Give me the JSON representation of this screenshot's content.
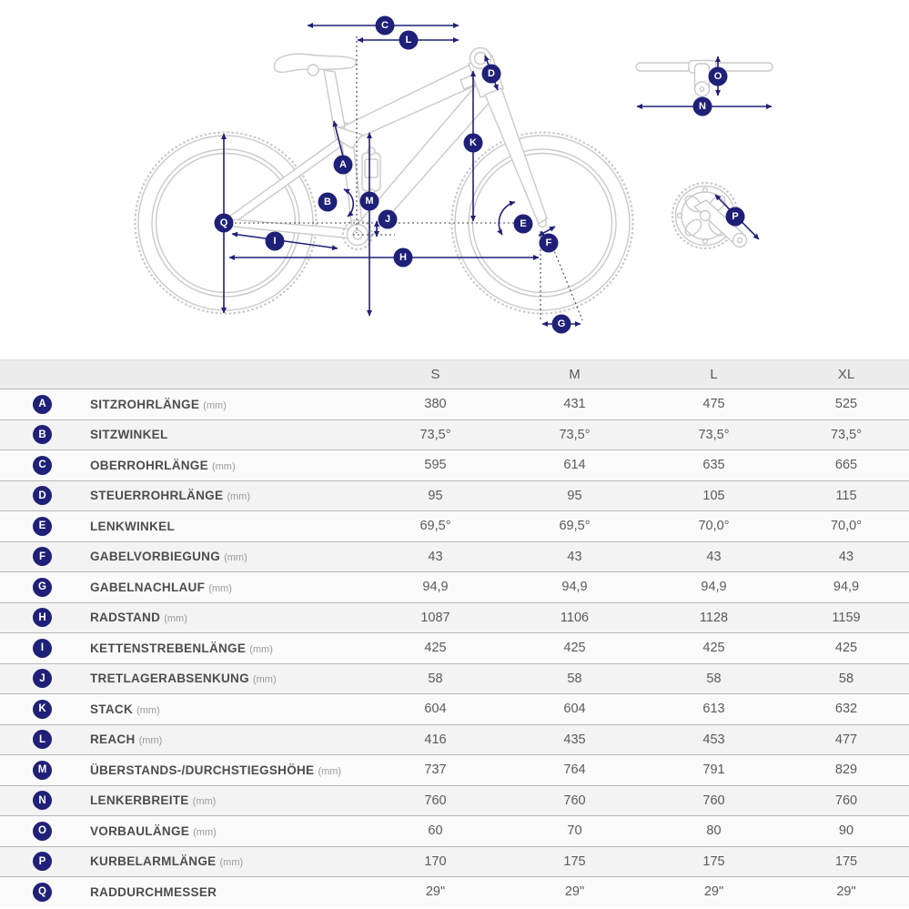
{
  "colors": {
    "accent_navy": "#1f2077",
    "line_gray": "#c9c9c9",
    "dash_gray": "#3f3f55",
    "header_bg": "#ececec",
    "row_light": "#fafafa",
    "row_dark": "#f3f3f3",
    "row_border": "#b8b8b8"
  },
  "diagram": {
    "description": "bike-geometry-line-drawing-with-dimension-arrows"
  },
  "table": {
    "size_headers": [
      "S",
      "M",
      "L",
      "XL"
    ],
    "rows": [
      {
        "letter": "A",
        "label": "SITZROHRLÄNGE",
        "unit": "(mm)",
        "values": [
          "380",
          "431",
          "475",
          "525"
        ]
      },
      {
        "letter": "B",
        "label": "SITZWINKEL",
        "unit": "",
        "values": [
          "73,5°",
          "73,5°",
          "73,5°",
          "73,5°"
        ]
      },
      {
        "letter": "C",
        "label": "OBERROHRLÄNGE",
        "unit": "(mm)",
        "values": [
          "595",
          "614",
          "635",
          "665"
        ]
      },
      {
        "letter": "D",
        "label": "STEUERROHRLÄNGE",
        "unit": "(mm)",
        "values": [
          "95",
          "95",
          "105",
          "115"
        ]
      },
      {
        "letter": "E",
        "label": "LENKWINKEL",
        "unit": "",
        "values": [
          "69,5°",
          "69,5°",
          "70,0°",
          "70,0°"
        ]
      },
      {
        "letter": "F",
        "label": "GABELVORBIEGUNG",
        "unit": "(mm)",
        "values": [
          "43",
          "43",
          "43",
          "43"
        ]
      },
      {
        "letter": "G",
        "label": "GABELNACHLAUF",
        "unit": "(mm)",
        "values": [
          "94,9",
          "94,9",
          "94,9",
          "94,9"
        ]
      },
      {
        "letter": "H",
        "label": "RADSTAND",
        "unit": "(mm)",
        "values": [
          "1087",
          "1106",
          "1128",
          "1159"
        ]
      },
      {
        "letter": "I",
        "label": "KETTENSTREBENLÄNGE",
        "unit": "(mm)",
        "values": [
          "425",
          "425",
          "425",
          "425"
        ]
      },
      {
        "letter": "J",
        "label": "TRETLAGERABSENKUNG",
        "unit": "(mm)",
        "values": [
          "58",
          "58",
          "58",
          "58"
        ]
      },
      {
        "letter": "K",
        "label": "STACK",
        "unit": "(mm)",
        "values": [
          "604",
          "604",
          "613",
          "632"
        ]
      },
      {
        "letter": "L",
        "label": "REACH",
        "unit": "(mm)",
        "values": [
          "416",
          "435",
          "453",
          "477"
        ]
      },
      {
        "letter": "M",
        "label": "ÜBERSTANDS-/DURCHSTIEGSHÖHE",
        "unit": "(mm)",
        "values": [
          "737",
          "764",
          "791",
          "829"
        ]
      },
      {
        "letter": "N",
        "label": "LENKERBREITE",
        "unit": "(mm)",
        "values": [
          "760",
          "760",
          "760",
          "760"
        ]
      },
      {
        "letter": "O",
        "label": "VORBAULÄNGE",
        "unit": "(mm)",
        "values": [
          "60",
          "70",
          "80",
          "90"
        ]
      },
      {
        "letter": "P",
        "label": "KURBELARMLÄNGE",
        "unit": "(mm)",
        "values": [
          "170",
          "175",
          "175",
          "175"
        ]
      },
      {
        "letter": "Q",
        "label": "RADDURCHMESSER",
        "unit": "",
        "values": [
          "29\"",
          "29\"",
          "29\"",
          "29\""
        ]
      }
    ]
  }
}
